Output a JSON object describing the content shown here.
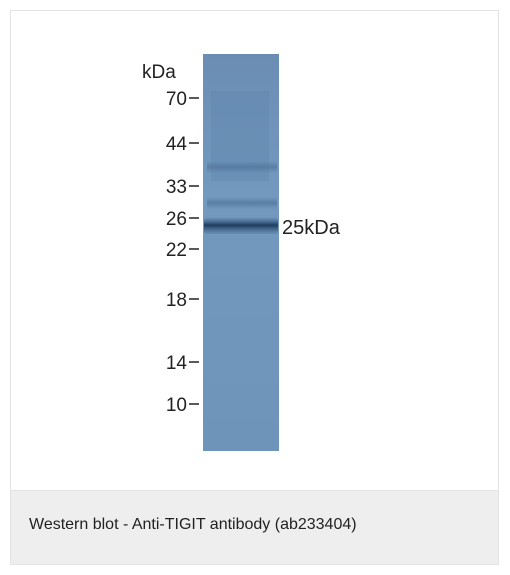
{
  "figure": {
    "unit_label": "kDa",
    "markers": [
      "70",
      "44",
      "33",
      "26",
      "22",
      "18",
      "14",
      "10"
    ],
    "band_label": "25kDa",
    "lane_color": "#6f93b8",
    "band_color": "#1d3b5e"
  },
  "caption": {
    "text": "Western blot - Anti-TIGIT antibody (ab233404)"
  }
}
